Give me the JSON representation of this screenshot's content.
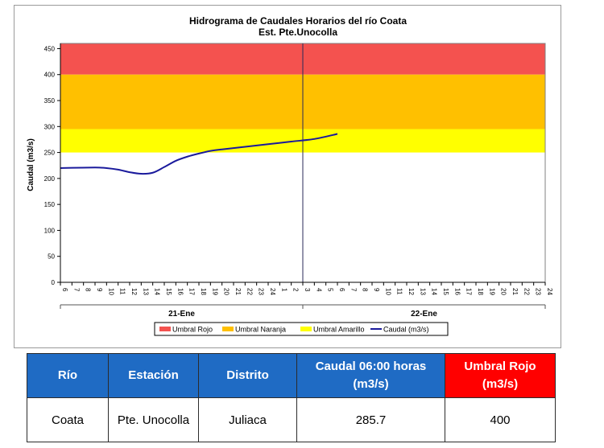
{
  "chart_data": {
    "type": "line",
    "title": "Hidrograma de Caudales Horarios del río Coata",
    "subtitle": "Est. Pte.Unocolla",
    "ylabel": "Caudal  (m3/s)",
    "ylim": [
      0,
      460
    ],
    "yticks": [
      0,
      50,
      100,
      150,
      200,
      250,
      300,
      350,
      400,
      450
    ],
    "xlim_hours": [
      6,
      48
    ],
    "x_tick_labels": [
      "6",
      "7",
      "8",
      "9",
      "10",
      "11",
      "12",
      "13",
      "14",
      "15",
      "16",
      "17",
      "18",
      "19",
      "20",
      "21",
      "22",
      "23",
      "24",
      "1",
      "2",
      "3",
      "4",
      "5",
      "6",
      "7",
      "8",
      "9",
      "10",
      "11",
      "12",
      "13",
      "14",
      "15",
      "16",
      "17",
      "18",
      "19",
      "20",
      "21",
      "22",
      "23",
      "24"
    ],
    "day_labels": [
      "21-Ene",
      "22-Ene"
    ],
    "day_split_hour": 27,
    "bands": [
      {
        "name": "Umbral Rojo",
        "from": 400,
        "to": 460,
        "color": "#f4524f"
      },
      {
        "name": "Umbral Naranja",
        "from": 295,
        "to": 400,
        "color": "#ffc000"
      },
      {
        "name": "Umbral Amarillo",
        "from": 250,
        "to": 295,
        "color": "#ffff00"
      }
    ],
    "series": [
      {
        "name": "Caudal (m3/s)",
        "color": "#1a1a9c",
        "x": [
          6,
          9,
          10,
          11,
          12,
          13,
          14,
          15,
          16,
          17,
          18,
          19,
          20,
          22,
          24,
          26,
          28,
          30
        ],
        "values": [
          220,
          221,
          220,
          217,
          212,
          209,
          211,
          222,
          234,
          242,
          248,
          253,
          256,
          261,
          266,
          271,
          276,
          285.7
        ]
      }
    ],
    "legend": [
      "Umbral Rojo",
      "Umbral Naranja",
      "Umbral Amarillo",
      "Caudal (m3/s)"
    ],
    "legend_position": "bottom",
    "grid": false
  },
  "table": {
    "headers": [
      "Río",
      "Estación",
      "Distrito",
      "Caudal  06:00 horas (m3/s)",
      "Umbral Rojo (m3/s)"
    ],
    "row": [
      "Coata",
      "Pte. Unocolla",
      "Juliaca",
      "285.7",
      "400"
    ]
  }
}
